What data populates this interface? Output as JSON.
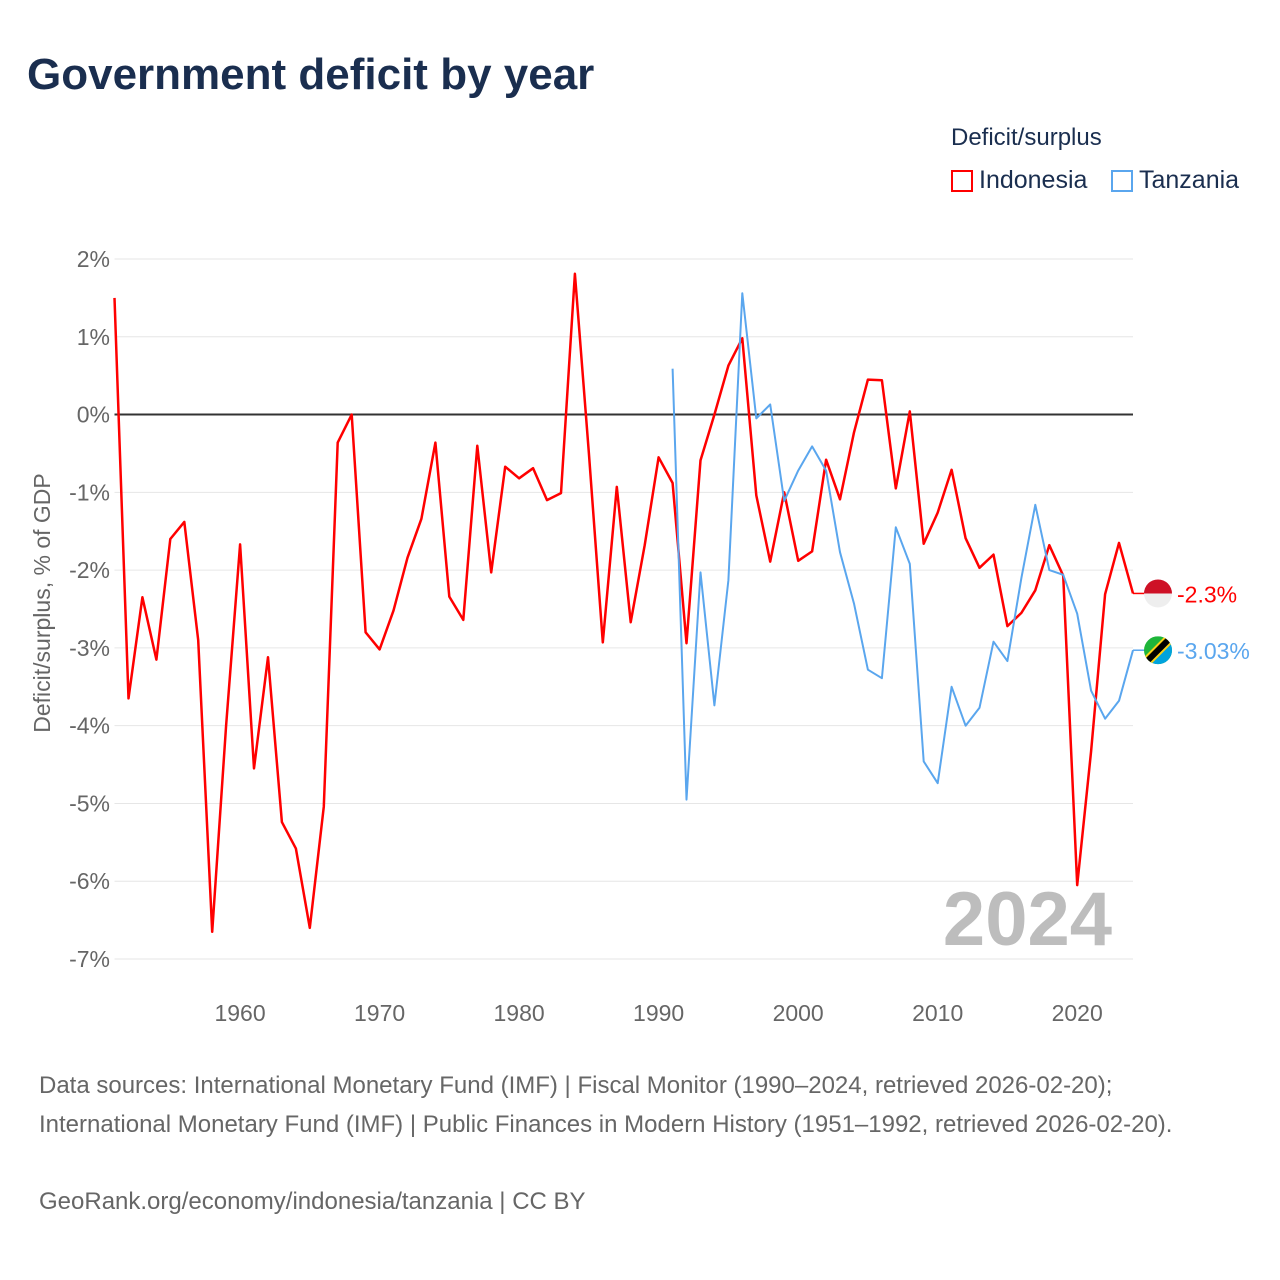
{
  "title": "Government deficit by year",
  "legend": {
    "title": "Deficit/surplus",
    "items": [
      {
        "name": "Indonesia",
        "color": "#ff0000"
      },
      {
        "name": "Tanzania",
        "color": "#5aa6ee"
      }
    ]
  },
  "footer": {
    "sources": "Data sources: International Monetary Fund (IMF) | Fiscal Monitor (1990–2024, retrieved 2026-02-20); International Monetary Fund (IMF) | Public Finances in Modern History (1951–1992, retrieved 2026-02-20).",
    "credit": "GeoRank.org/economy/indonesia/tanzania | CC BY"
  },
  "chart_data": {
    "type": "line",
    "title": "Government deficit by year",
    "xlabel": "",
    "ylabel": "Deficit/surplus, % of GDP",
    "xlim": [
      1951,
      2024
    ],
    "ylim": [
      -7,
      2
    ],
    "yticks": [
      2,
      1,
      0,
      -1,
      -2,
      -3,
      -4,
      -5,
      -6,
      -7
    ],
    "ytick_labels": [
      "2%",
      "1%",
      "0%",
      "-1%",
      "-2%",
      "-3%",
      "-4%",
      "-5%",
      "-6%",
      "-7%"
    ],
    "xticks": [
      1960,
      1970,
      1980,
      1990,
      2000,
      2010,
      2020
    ],
    "xtick_labels": [
      "1960",
      "1970",
      "1980",
      "1990",
      "2000",
      "2010",
      "2020"
    ],
    "grid": true,
    "legend_position": "top-right",
    "year_watermark": "2024",
    "series": [
      {
        "name": "Indonesia",
        "color": "#ff0000",
        "start_year": 1951,
        "end_label": "-2.3%",
        "values": [
          1.5,
          -3.65,
          -2.35,
          -3.15,
          -1.6,
          -1.38,
          -2.9,
          -6.65,
          -4.0,
          -1.67,
          -4.55,
          -3.12,
          -5.24,
          -5.58,
          -6.6,
          -5.04,
          -0.36,
          0.0,
          -2.8,
          -3.02,
          -2.52,
          -1.84,
          -1.34,
          -0.36,
          -2.34,
          -2.64,
          -0.4,
          -2.03,
          -0.67,
          -0.82,
          -0.69,
          -1.1,
          -1.01,
          1.81,
          -0.5,
          -2.93,
          -0.93,
          -2.67,
          -1.68,
          -0.55,
          -0.88,
          -2.94,
          -0.59,
          0.0,
          0.63,
          0.98,
          -1.04,
          -1.89,
          -1.0,
          -1.88,
          -1.76,
          -0.58,
          -1.09,
          -0.23,
          0.45,
          0.44,
          -0.95,
          0.04,
          -1.66,
          -1.26,
          -0.71,
          -1.59,
          -1.97,
          -1.8,
          -2.72,
          -2.55,
          -2.26,
          -1.68,
          -2.07,
          -6.05,
          -4.33,
          -2.31,
          -1.65,
          -2.3
        ]
      },
      {
        "name": "Tanzania",
        "color": "#5aa6ee",
        "start_year": 1991,
        "end_label": "-3.03%",
        "values": [
          0.59,
          -4.95,
          -2.03,
          -3.74,
          -2.13,
          1.56,
          -0.05,
          0.13,
          -1.11,
          -0.72,
          -0.41,
          -0.72,
          -1.77,
          -2.43,
          -3.28,
          -3.39,
          -1.45,
          -1.92,
          -4.46,
          -4.74,
          -3.5,
          -4.0,
          -3.77,
          -2.92,
          -3.17,
          -2.1,
          -1.16,
          -2.0,
          -2.06,
          -2.56,
          -3.55,
          -3.91,
          -3.68,
          -3.03
        ]
      }
    ]
  }
}
